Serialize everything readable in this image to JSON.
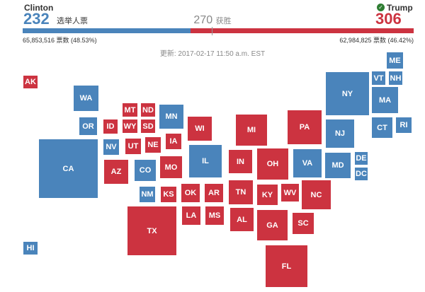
{
  "colors": {
    "dem": "#4a84bb",
    "rep": "#cc3340"
  },
  "header": {
    "clinton_name": "Clinton",
    "clinton_ev": "232",
    "clinton_ev_label": "选举人票",
    "trump_name": "Trump",
    "trump_ev": "306",
    "threshold_value": "270",
    "threshold_label": "获胜",
    "clinton_popular": "65,853,516 票数 (48.53%)",
    "trump_popular": "62,984,825 票数 (46.42%)",
    "updated": "更新: 2017-02-17 11:50 a.m. EST",
    "winner_icon": "check-icon"
  },
  "states": [
    {
      "abbr": "AK",
      "party": "R"
    },
    {
      "abbr": "HI",
      "party": "D"
    },
    {
      "abbr": "WA",
      "party": "D"
    },
    {
      "abbr": "OR",
      "party": "D"
    },
    {
      "abbr": "CA",
      "party": "D"
    },
    {
      "abbr": "NV",
      "party": "D"
    },
    {
      "abbr": "ID",
      "party": "R"
    },
    {
      "abbr": "MT",
      "party": "R"
    },
    {
      "abbr": "WY",
      "party": "R"
    },
    {
      "abbr": "ND",
      "party": "R"
    },
    {
      "abbr": "SD",
      "party": "R"
    },
    {
      "abbr": "UT",
      "party": "R"
    },
    {
      "abbr": "AZ",
      "party": "R"
    },
    {
      "abbr": "CO",
      "party": "D"
    },
    {
      "abbr": "NM",
      "party": "D"
    },
    {
      "abbr": "NE",
      "party": "R"
    },
    {
      "abbr": "KS",
      "party": "R"
    },
    {
      "abbr": "OK",
      "party": "R"
    },
    {
      "abbr": "TX",
      "party": "R"
    },
    {
      "abbr": "MN",
      "party": "D"
    },
    {
      "abbr": "IA",
      "party": "R"
    },
    {
      "abbr": "MO",
      "party": "R"
    },
    {
      "abbr": "AR",
      "party": "R"
    },
    {
      "abbr": "LA",
      "party": "R"
    },
    {
      "abbr": "WI",
      "party": "R"
    },
    {
      "abbr": "IL",
      "party": "D"
    },
    {
      "abbr": "MS",
      "party": "R"
    },
    {
      "abbr": "MI",
      "party": "R"
    },
    {
      "abbr": "IN",
      "party": "R"
    },
    {
      "abbr": "TN",
      "party": "R"
    },
    {
      "abbr": "AL",
      "party": "R"
    },
    {
      "abbr": "OH",
      "party": "R"
    },
    {
      "abbr": "KY",
      "party": "R"
    },
    {
      "abbr": "WV",
      "party": "R"
    },
    {
      "abbr": "GA",
      "party": "R"
    },
    {
      "abbr": "FL",
      "party": "R"
    },
    {
      "abbr": "PA",
      "party": "R"
    },
    {
      "abbr": "VA",
      "party": "D"
    },
    {
      "abbr": "NC",
      "party": "R"
    },
    {
      "abbr": "SC",
      "party": "R"
    },
    {
      "abbr": "NY",
      "party": "D"
    },
    {
      "abbr": "NJ",
      "party": "D"
    },
    {
      "abbr": "MD",
      "party": "D"
    },
    {
      "abbr": "DE",
      "party": "D"
    },
    {
      "abbr": "DC",
      "party": "D"
    },
    {
      "abbr": "ME",
      "party": "D"
    },
    {
      "abbr": "VT",
      "party": "D"
    },
    {
      "abbr": "NH",
      "party": "D"
    },
    {
      "abbr": "MA",
      "party": "D"
    },
    {
      "abbr": "CT",
      "party": "D"
    },
    {
      "abbr": "RI",
      "party": "D"
    }
  ]
}
